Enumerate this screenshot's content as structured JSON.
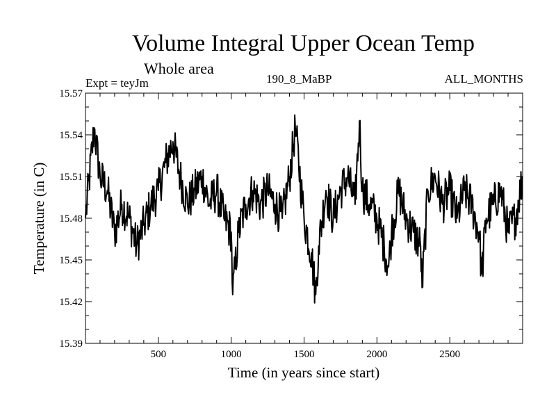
{
  "chart_data": {
    "type": "line",
    "title": "Volume Integral Upper Ocean Temp",
    "subtitle": "Whole area",
    "experiment_label": "Expt = teyJm",
    "run_label": "190_8_MaBP",
    "months_label": "ALL_MONTHS",
    "xlabel": "Time (in years since start)",
    "ylabel": "Temperature (in C)",
    "xlim": [
      0,
      3000
    ],
    "ylim": [
      15.39,
      15.57
    ],
    "x_ticks": [
      500,
      1000,
      1500,
      2000,
      2500
    ],
    "y_ticks": [
      "15.39",
      "15.42",
      "15.45",
      "15.48",
      "15.51",
      "15.54",
      "15.57"
    ],
    "series": [
      {
        "name": "temperature",
        "x": [
          0,
          60,
          100,
          150,
          200,
          250,
          300,
          350,
          400,
          450,
          500,
          550,
          600,
          650,
          700,
          750,
          800,
          850,
          900,
          950,
          1000,
          1010,
          1050,
          1100,
          1150,
          1200,
          1250,
          1300,
          1350,
          1400,
          1440,
          1500,
          1550,
          1580,
          1600,
          1650,
          1700,
          1750,
          1800,
          1850,
          1880,
          1900,
          1950,
          2000,
          2050,
          2080,
          2100,
          2150,
          2200,
          2250,
          2300,
          2310,
          2350,
          2400,
          2450,
          2500,
          2550,
          2600,
          2650,
          2700,
          2720,
          2750,
          2800,
          2850,
          2900,
          2950,
          3000
        ],
        "values": [
          15.48,
          15.545,
          15.51,
          15.5,
          15.47,
          15.49,
          15.48,
          15.46,
          15.475,
          15.49,
          15.5,
          15.52,
          15.535,
          15.51,
          15.49,
          15.5,
          15.51,
          15.49,
          15.5,
          15.48,
          15.47,
          15.425,
          15.47,
          15.49,
          15.5,
          15.49,
          15.5,
          15.49,
          15.48,
          15.51,
          15.545,
          15.48,
          15.455,
          15.425,
          15.46,
          15.5,
          15.48,
          15.5,
          15.51,
          15.49,
          15.55,
          15.5,
          15.49,
          15.48,
          15.46,
          15.445,
          15.47,
          15.5,
          15.48,
          15.47,
          15.46,
          15.43,
          15.5,
          15.51,
          15.49,
          15.5,
          15.48,
          15.5,
          15.49,
          15.47,
          15.44,
          15.48,
          15.49,
          15.5,
          15.47,
          15.48,
          15.51
        ]
      }
    ]
  }
}
